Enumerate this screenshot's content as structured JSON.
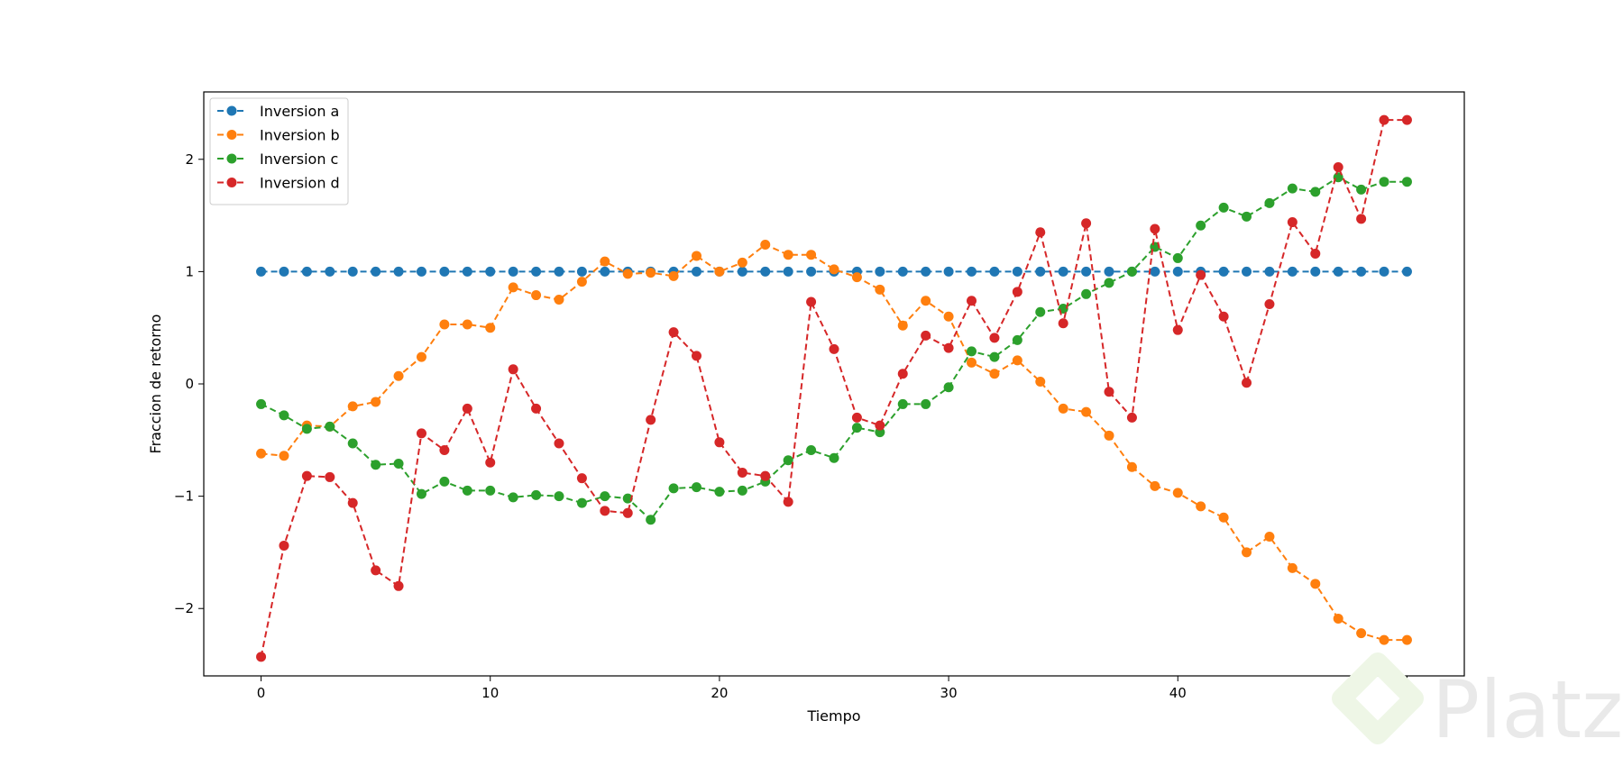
{
  "chart_data": {
    "type": "line",
    "title": "",
    "xlabel": "Tiempo",
    "ylabel": "Fraccion de retorno",
    "xlim": [
      -2.5,
      52.5
    ],
    "ylim": [
      -2.6,
      2.6
    ],
    "xticks": [
      0,
      10,
      20,
      30,
      40,
      50
    ],
    "yticks": [
      -2,
      -1,
      0,
      1,
      2
    ],
    "xtick_labels": [
      "0",
      "10",
      "20",
      "30",
      "40",
      "50"
    ],
    "ytick_labels": [
      "−2",
      "−1",
      "0",
      "1",
      "2"
    ],
    "grid": false,
    "legend_position": "top-left",
    "x": [
      0,
      1,
      2,
      3,
      4,
      5,
      6,
      7,
      8,
      9,
      10,
      11,
      12,
      13,
      14,
      15,
      16,
      17,
      18,
      19,
      20,
      21,
      22,
      23,
      24,
      25,
      26,
      27,
      28,
      29,
      30,
      31,
      32,
      33,
      34,
      35,
      36,
      37,
      38,
      39,
      40,
      41,
      42,
      43,
      44,
      45,
      46,
      47,
      48,
      49,
      50
    ],
    "series": [
      {
        "name": "Inversion a",
        "color": "#1f77b4",
        "values": [
          1,
          1,
          1,
          1,
          1,
          1,
          1,
          1,
          1,
          1,
          1,
          1,
          1,
          1,
          1,
          1,
          1,
          1,
          1,
          1,
          1,
          1,
          1,
          1,
          1,
          1,
          1,
          1,
          1,
          1,
          1,
          1,
          1,
          1,
          1,
          1,
          1,
          1,
          1,
          1,
          1,
          1,
          1,
          1,
          1,
          1,
          1,
          1,
          1,
          1,
          1
        ]
      },
      {
        "name": "Inversion b",
        "color": "#ff7f0e",
        "values": [
          -0.62,
          -0.64,
          -0.37,
          -0.38,
          -0.2,
          -0.16,
          0.07,
          0.24,
          0.53,
          0.53,
          0.5,
          0.86,
          0.79,
          0.75,
          0.91,
          1.09,
          0.98,
          0.99,
          0.96,
          1.14,
          1.0,
          1.08,
          1.24,
          1.15,
          1.15,
          1.02,
          0.95,
          0.84,
          0.52,
          0.74,
          0.6,
          0.19,
          0.09,
          0.21,
          0.02,
          -0.22,
          -0.25,
          -0.46,
          -0.74,
          -0.91,
          -0.97,
          -1.09,
          -1.19,
          -1.5,
          -1.36,
          -1.64,
          -1.78,
          -2.09,
          -2.22,
          -2.28,
          -2.28
        ]
      },
      {
        "name": "Inversion c",
        "color": "#2ca02c",
        "values": [
          -0.18,
          -0.28,
          -0.4,
          -0.38,
          -0.53,
          -0.72,
          -0.71,
          -0.98,
          -0.87,
          -0.95,
          -0.95,
          -1.01,
          -0.99,
          -1.0,
          -1.06,
          -1.0,
          -1.02,
          -1.21,
          -0.93,
          -0.92,
          -0.96,
          -0.95,
          -0.87,
          -0.68,
          -0.59,
          -0.66,
          -0.39,
          -0.43,
          -0.18,
          -0.18,
          -0.03,
          0.29,
          0.24,
          0.39,
          0.64,
          0.67,
          0.8,
          0.9,
          1.0,
          1.22,
          1.12,
          1.41,
          1.57,
          1.49,
          1.61,
          1.74,
          1.71,
          1.84,
          1.73,
          1.8,
          1.8
        ]
      },
      {
        "name": "Inversion d",
        "color": "#d62728",
        "values": [
          -2.43,
          -1.44,
          -0.82,
          -0.83,
          -1.06,
          -1.66,
          -1.8,
          -0.44,
          -0.59,
          -0.22,
          -0.7,
          0.13,
          -0.22,
          -0.53,
          -0.84,
          -1.13,
          -1.15,
          -0.32,
          0.46,
          0.25,
          -0.52,
          -0.79,
          -0.82,
          -1.05,
          0.73,
          0.31,
          -0.3,
          -0.37,
          0.09,
          0.43,
          0.32,
          0.74,
          0.41,
          0.82,
          1.35,
          0.54,
          1.43,
          -0.07,
          -0.3,
          1.38,
          0.48,
          0.97,
          0.6,
          0.01,
          0.71,
          1.44,
          1.16,
          1.93,
          1.47,
          2.35,
          2.35
        ]
      }
    ]
  },
  "watermark": {
    "text": "Platzi",
    "icon": "platzi-logo-icon"
  }
}
